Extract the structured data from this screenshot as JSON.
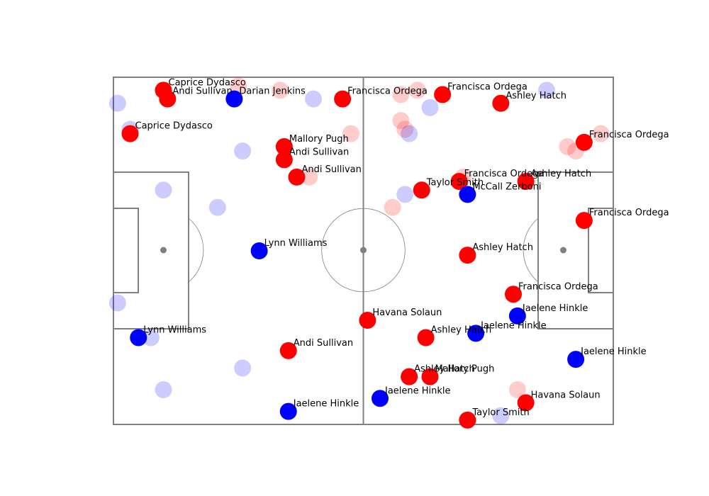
{
  "chart_data": {
    "type": "scatter",
    "title": "",
    "xlabel": "",
    "ylabel": "",
    "xlim": [
      0,
      120
    ],
    "ylim": [
      0,
      80
    ],
    "grid": false,
    "legend": "none",
    "series": [
      {
        "color": "#ff0000",
        "alpha": 1.0,
        "points": [
          {
            "x": 12,
            "y": 77,
            "label": "Caprice Dydasco"
          },
          {
            "x": 13,
            "y": 75,
            "label": "Andi Sullivan"
          },
          {
            "x": 4,
            "y": 67,
            "label": "Caprice Dydasco"
          },
          {
            "x": 41,
            "y": 64,
            "label": "Mallory Pugh"
          },
          {
            "x": 41,
            "y": 61,
            "label": "Andi Sullivan"
          },
          {
            "x": 44,
            "y": 57,
            "label": "Andi Sullivan"
          },
          {
            "x": 55,
            "y": 75,
            "label": "Francisca Ordega"
          },
          {
            "x": 79,
            "y": 76,
            "label": "Francisca Ordega"
          },
          {
            "x": 93,
            "y": 74,
            "label": "Ashley Hatch"
          },
          {
            "x": 113,
            "y": 65,
            "label": "Francisca Ordega"
          },
          {
            "x": 74,
            "y": 54,
            "label": "Taylor Smith"
          },
          {
            "x": 83,
            "y": 56,
            "label": "Francisca Ordega"
          },
          {
            "x": 99,
            "y": 56,
            "label": "Ashley Hatch"
          },
          {
            "x": 113,
            "y": 47,
            "label": "Francisca Ordega"
          },
          {
            "x": 85,
            "y": 39,
            "label": "Ashley Hatch"
          },
          {
            "x": 96,
            "y": 30,
            "label": "Francisca Ordega"
          },
          {
            "x": 61,
            "y": 24,
            "label": "Havana Solaun"
          },
          {
            "x": 75,
            "y": 20,
            "label": "Ashley Hatch"
          },
          {
            "x": 42,
            "y": 17,
            "label": "Andi Sullivan"
          },
          {
            "x": 71,
            "y": 11,
            "label": "Ashley Hatch"
          },
          {
            "x": 76,
            "y": 11,
            "label": "Mallory Pugh"
          },
          {
            "x": 99,
            "y": 5,
            "label": "Havana Solaun"
          },
          {
            "x": 85,
            "y": 1,
            "label": "Taylor Smith"
          }
        ]
      },
      {
        "color": "#0000ff",
        "alpha": 1.0,
        "points": [
          {
            "x": 29,
            "y": 75,
            "label": "Darian Jenkins"
          },
          {
            "x": 35,
            "y": 40,
            "label": "Lynn Williams"
          },
          {
            "x": 6,
            "y": 20,
            "label": "Lynn Williams"
          },
          {
            "x": 85,
            "y": 53,
            "label": "McCall Zerboni"
          },
          {
            "x": 97,
            "y": 25,
            "label": "Jaelene Hinkle"
          },
          {
            "x": 87,
            "y": 21,
            "label": "Jaelene Hinkle"
          },
          {
            "x": 111,
            "y": 15,
            "label": "Jaelene Hinkle"
          },
          {
            "x": 64,
            "y": 6,
            "label": "Jaelene Hinkle"
          },
          {
            "x": 42,
            "y": 3,
            "label": "Jaelene Hinkle"
          }
        ]
      },
      {
        "color": "#ff0000",
        "alpha": 0.2,
        "points": [
          {
            "x": 30,
            "y": 78
          },
          {
            "x": 40,
            "y": 77
          },
          {
            "x": 57,
            "y": 67
          },
          {
            "x": 47,
            "y": 57
          },
          {
            "x": 69,
            "y": 76
          },
          {
            "x": 73,
            "y": 77
          },
          {
            "x": 69,
            "y": 70
          },
          {
            "x": 70,
            "y": 68
          },
          {
            "x": 67,
            "y": 50
          },
          {
            "x": 84,
            "y": 57
          },
          {
            "x": 109,
            "y": 64
          },
          {
            "x": 111,
            "y": 63
          },
          {
            "x": 117,
            "y": 67
          },
          {
            "x": 97,
            "y": 8
          }
        ]
      },
      {
        "color": "#0000ff",
        "alpha": 0.2,
        "points": [
          {
            "x": 1,
            "y": 74
          },
          {
            "x": 4,
            "y": 68
          },
          {
            "x": 48,
            "y": 75
          },
          {
            "x": 31,
            "y": 63
          },
          {
            "x": 12,
            "y": 54
          },
          {
            "x": 25,
            "y": 50
          },
          {
            "x": 1,
            "y": 28
          },
          {
            "x": 9,
            "y": 20
          },
          {
            "x": 31,
            "y": 13
          },
          {
            "x": 12,
            "y": 8
          },
          {
            "x": 71,
            "y": 67
          },
          {
            "x": 76,
            "y": 73
          },
          {
            "x": 70,
            "y": 53
          },
          {
            "x": 104,
            "y": 77
          },
          {
            "x": 93,
            "y": 2
          }
        ]
      }
    ]
  }
}
